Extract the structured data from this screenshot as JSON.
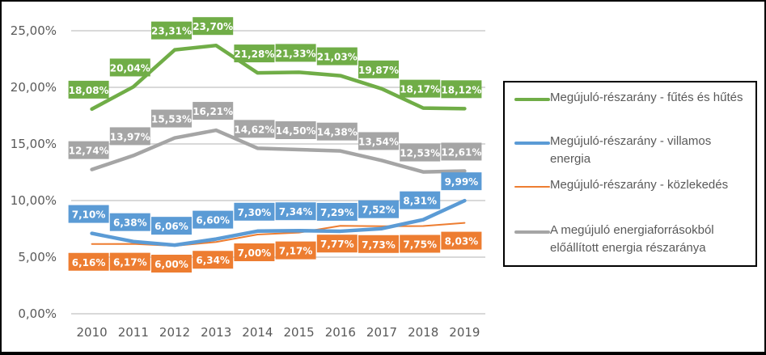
{
  "chart_data": {
    "type": "line",
    "title": "",
    "xlabel": "",
    "ylabel": "",
    "x": [
      "2010",
      "2011",
      "2012",
      "2013",
      "2014",
      "2015",
      "2016",
      "2017",
      "2018",
      "2019"
    ],
    "ylim": [
      0,
      25
    ],
    "yticks": [
      "0,00%",
      "5,00%",
      "10,00%",
      "15,00%",
      "20,00%",
      "25,00%"
    ],
    "ytick_values": [
      0,
      5,
      10,
      15,
      20,
      25
    ],
    "grid": true,
    "legend_position": "right",
    "series": [
      {
        "name": "Megújuló-részarány - fűtés és hűtés",
        "color": "#70AD47",
        "values": [
          18.08,
          20.04,
          23.31,
          23.7,
          21.28,
          21.33,
          21.03,
          19.87,
          18.17,
          18.12
        ],
        "labels": [
          "18,08%",
          "20,04%",
          "23,31%",
          "23,70%",
          "21,28%",
          "21,33%",
          "21,03%",
          "19,87%",
          "18,17%",
          "18,12%"
        ]
      },
      {
        "name": "Megújuló-részarány - villamos energia",
        "color": "#5B9BD5",
        "values": [
          7.1,
          6.38,
          6.06,
          6.6,
          7.3,
          7.34,
          7.29,
          7.52,
          8.31,
          9.99
        ],
        "labels": [
          "7,10%",
          "6,38%",
          "6,06%",
          "6,60%",
          "7,30%",
          "7,34%",
          "7,29%",
          "7,52%",
          "8,31%",
          "9,99%"
        ]
      },
      {
        "name": "Megújuló-részarány - közlekedés",
        "color": "#ED7D31",
        "values": [
          6.16,
          6.17,
          6.0,
          6.34,
          7.0,
          7.17,
          7.77,
          7.73,
          7.75,
          8.03
        ],
        "labels": [
          "6,16%",
          "6,17%",
          "6,00%",
          "6,34%",
          "7,00%",
          "7,17%",
          "7,77%",
          "7,73%",
          "7,75%",
          "8,03%"
        ]
      },
      {
        "name": "A megújuló energiaforrásokból előállított energia részaránya",
        "color": "#A5A5A5",
        "values": [
          12.74,
          13.97,
          15.53,
          16.21,
          14.62,
          14.5,
          14.38,
          13.54,
          12.53,
          12.61
        ],
        "labels": [
          "12,74%",
          "13,97%",
          "15,53%",
          "16,21%",
          "14,62%",
          "14,50%",
          "14,38%",
          "13,54%",
          "12,53%",
          "12,61%"
        ]
      }
    ]
  },
  "legend": {
    "items": [
      {
        "label": "Megújuló-részarány - fűtés és hűtés",
        "color": "#70AD47"
      },
      {
        "label": "Megújuló-részarány - villamos energia",
        "color": "#5B9BD5"
      },
      {
        "label": "Megújuló-részarány - közlekedés",
        "color": "#ED7D31"
      },
      {
        "label": "A megújuló energiaforrásokból előállított energia részaránya",
        "color": "#A5A5A5"
      }
    ]
  }
}
